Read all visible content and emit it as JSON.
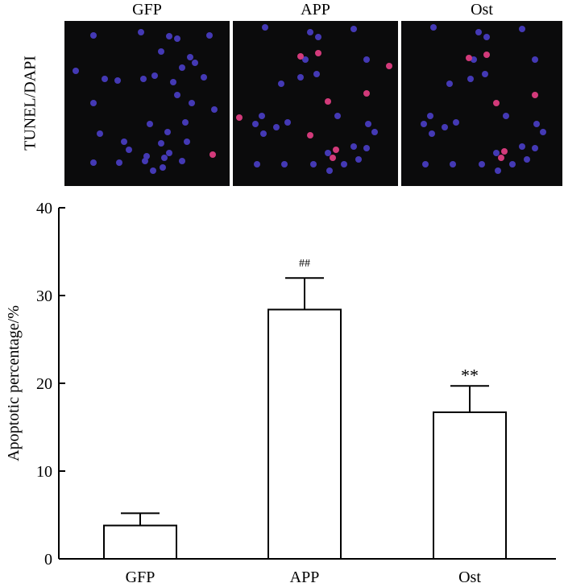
{
  "panels": {
    "row_label": "TUNEL/DAPI",
    "columns": [
      "GFP",
      "APP",
      "Ost"
    ]
  },
  "chart_data": {
    "type": "bar",
    "categories": [
      "GFP",
      "APP",
      "Ost"
    ],
    "values": [
      3.8,
      28.4,
      16.7
    ],
    "errors": [
      1.4,
      3.6,
      3.0
    ],
    "annotations": [
      "",
      "##",
      "**"
    ],
    "ylabel": "Apoptotic percentage/%",
    "xlabel": "",
    "ylim": [
      0,
      40
    ],
    "yticks": [
      0,
      10,
      20,
      30,
      40
    ],
    "bar_fill": "#ffffff",
    "bar_stroke": "#000000"
  },
  "colors": {
    "micro_background": "#0b0b0c",
    "dapi_nucleus": "#4b3fc8",
    "tunel_nucleus": "#d23a7a"
  }
}
